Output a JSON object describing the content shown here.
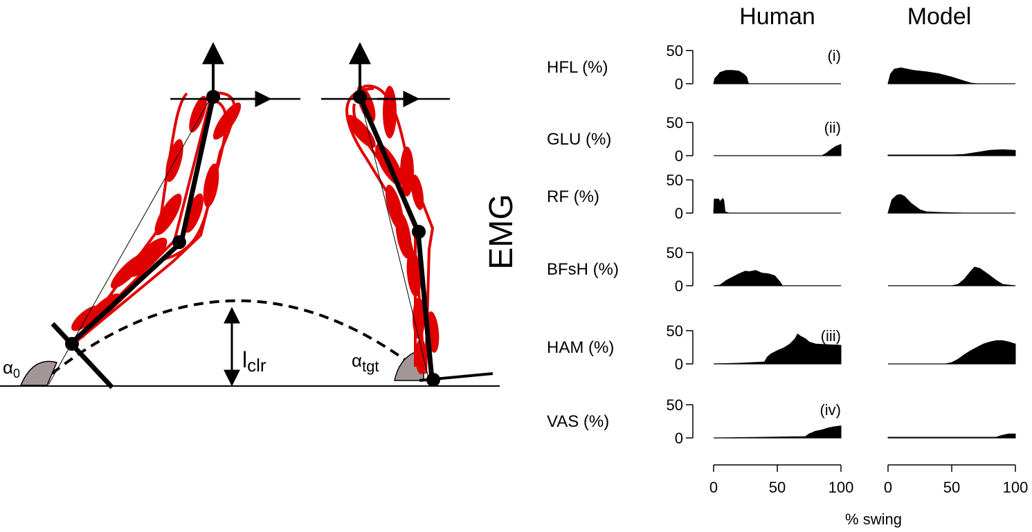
{
  "colors": {
    "muscle": "#e00000",
    "segment": "#000000",
    "angle_fill": "#a39696",
    "emg_fill": "#000000"
  },
  "diagram": {
    "ylabel": "EMG",
    "clearance_label": "l",
    "clearance_sub": "clr",
    "alpha0_label": "α",
    "alpha0_sub": "0",
    "alphatgt_label": "α",
    "alphatgt_sub": "tgt"
  },
  "chart_data": {
    "type": "area",
    "columns": [
      "Human",
      "Model"
    ],
    "xlabel": "% swing",
    "xlim": [
      0,
      100
    ],
    "xticks": [
      "0",
      "50",
      "100"
    ],
    "ylim": [
      0,
      50
    ],
    "yticks": [
      "0",
      "50"
    ],
    "muscles": [
      {
        "label": "HFL (%)",
        "tag": "(i)",
        "human": {
          "x": [
            0,
            1,
            3,
            5,
            10,
            15,
            20,
            24,
            26,
            27,
            28,
            100
          ],
          "y": [
            0,
            8,
            12,
            17,
            20,
            20,
            19,
            14,
            10,
            2,
            0,
            0
          ]
        },
        "model": {
          "x": [
            0,
            2,
            5,
            10,
            15,
            20,
            30,
            40,
            50,
            60,
            65,
            70,
            100
          ],
          "y": [
            0,
            15,
            22,
            24,
            22,
            20,
            18,
            15,
            10,
            4,
            1,
            0,
            0
          ]
        }
      },
      {
        "label": "GLU (%)",
        "tag": "(ii)",
        "human": {
          "x": [
            0,
            85,
            88,
            92,
            96,
            100
          ],
          "y": [
            0,
            0,
            3,
            9,
            14,
            17
          ]
        },
        "model": {
          "x": [
            0,
            50,
            60,
            70,
            80,
            90,
            100
          ],
          "y": [
            1,
            1,
            2,
            5,
            8,
            9,
            8
          ]
        }
      },
      {
        "label": "RF (%)",
        "tag": "",
        "human": {
          "x": [
            0,
            0.5,
            4,
            5,
            7,
            8,
            9,
            12,
            100
          ],
          "y": [
            0,
            21,
            21,
            17,
            22,
            20,
            2,
            0,
            0
          ]
        },
        "model": {
          "x": [
            0,
            3,
            7,
            10,
            13,
            18,
            25,
            30,
            40,
            60,
            100
          ],
          "y": [
            0,
            20,
            27,
            28,
            25,
            15,
            5,
            2,
            1,
            0,
            0
          ]
        }
      },
      {
        "label": "BFsH (%)",
        "tag": "",
        "human": {
          "x": [
            0,
            5,
            10,
            15,
            20,
            25,
            28,
            33,
            38,
            43,
            48,
            52,
            54,
            100
          ],
          "y": [
            0,
            1,
            8,
            13,
            18,
            22,
            21,
            23,
            19,
            18,
            15,
            6,
            0,
            0
          ]
        },
        "model": {
          "x": [
            0,
            50,
            55,
            60,
            65,
            68,
            72,
            78,
            85,
            90,
            100
          ],
          "y": [
            0,
            0,
            2,
            10,
            22,
            28,
            26,
            18,
            8,
            2,
            0
          ]
        }
      },
      {
        "label": "HAM (%)",
        "tag": "(iii)",
        "human": {
          "x": [
            0,
            20,
            30,
            40,
            42,
            45,
            50,
            55,
            60,
            64,
            66,
            68,
            72,
            75,
            80,
            90,
            100
          ],
          "y": [
            0,
            1,
            2,
            3,
            10,
            15,
            20,
            24,
            30,
            38,
            45,
            42,
            38,
            33,
            30,
            29,
            28
          ]
        },
        "model": {
          "x": [
            0,
            45,
            50,
            55,
            60,
            65,
            70,
            75,
            80,
            85,
            90,
            95,
            100
          ],
          "y": [
            0,
            0,
            2,
            7,
            14,
            20,
            25,
            30,
            33,
            35,
            35,
            33,
            30
          ]
        }
      },
      {
        "label": "VAS (%)",
        "tag": "(iv)",
        "human": {
          "x": [
            0,
            40,
            72,
            75,
            80,
            85,
            90,
            95,
            100
          ],
          "y": [
            0,
            1,
            2,
            6,
            10,
            12,
            15,
            17,
            18
          ]
        },
        "model": {
          "x": [
            0,
            85,
            88,
            92,
            95,
            100
          ],
          "y": [
            1,
            1,
            3,
            5,
            6,
            6
          ]
        }
      }
    ]
  }
}
